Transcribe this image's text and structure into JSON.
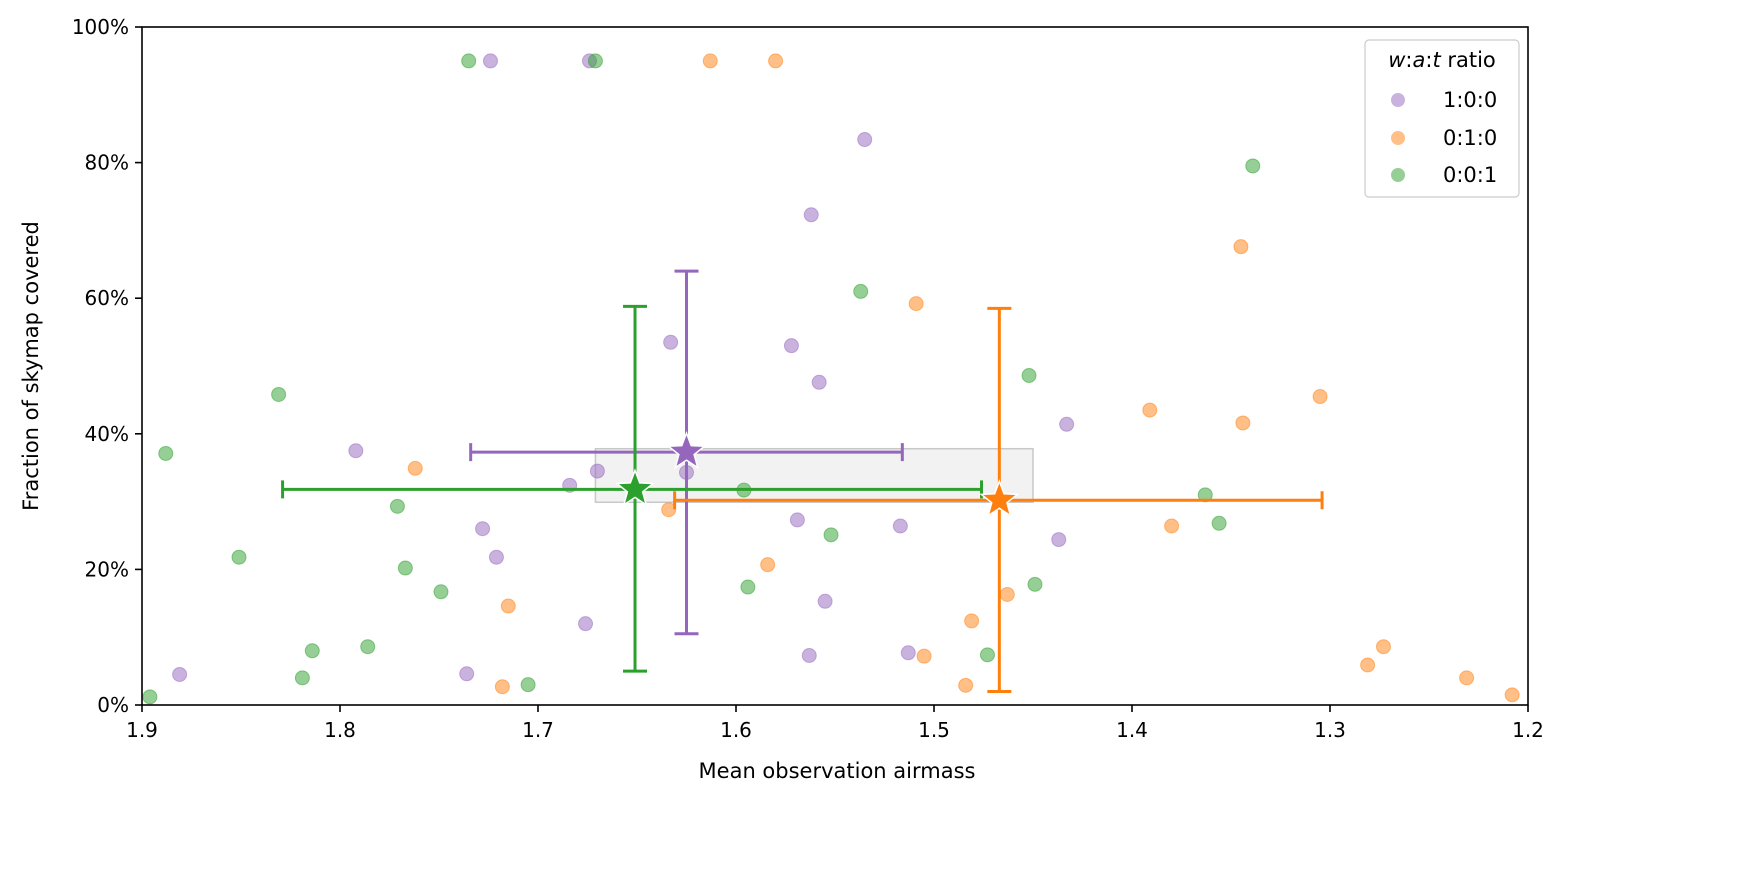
{
  "chart_data": {
    "type": "scatter",
    "xlabel": "Mean observation airmass",
    "ylabel": "Fraction of skymap covered",
    "xlim": [
      1.9,
      1.2
    ],
    "ylim": [
      0,
      100
    ],
    "x_inverted": true,
    "x_ticks": [
      1.9,
      1.8,
      1.7,
      1.6,
      1.5,
      1.4,
      1.3,
      1.2
    ],
    "x_tick_labels": [
      "1.9",
      "1.8",
      "1.7",
      "1.6",
      "1.5",
      "1.4",
      "1.3",
      "1.2"
    ],
    "y_ticks": [
      0,
      20,
      40,
      60,
      80,
      100
    ],
    "y_tick_labels": [
      "0%",
      "20%",
      "40%",
      "60%",
      "80%",
      "100%"
    ],
    "grid": false,
    "legend": {
      "title_var_w": "w",
      "title_sep": ":",
      "title_var_a": "a",
      "title_var_t": "t",
      "title_suffix": " ratio",
      "placement": "top-right"
    },
    "series": [
      {
        "name": "1:0:0",
        "color": "#9467bd",
        "points": [
          [
            1.881,
            4.5
          ],
          [
            1.792,
            37.5
          ],
          [
            1.736,
            4.6
          ],
          [
            1.728,
            26
          ],
          [
            1.724,
            95
          ],
          [
            1.721,
            21.8
          ],
          [
            1.684,
            32.4
          ],
          [
            1.676,
            12
          ],
          [
            1.674,
            95
          ],
          [
            1.67,
            34.5
          ],
          [
            1.633,
            53.5
          ],
          [
            1.625,
            34.3
          ],
          [
            1.572,
            53
          ],
          [
            1.569,
            27.3
          ],
          [
            1.563,
            7.3
          ],
          [
            1.562,
            72.3
          ],
          [
            1.558,
            47.6
          ],
          [
            1.555,
            15.3
          ],
          [
            1.535,
            83.4
          ],
          [
            1.517,
            26.4
          ],
          [
            1.513,
            7.7
          ],
          [
            1.437,
            24.4
          ],
          [
            1.433,
            41.4
          ]
        ],
        "mean": {
          "x": 1.625,
          "y": 37.3,
          "x_err": [
            1.734,
            1.516
          ],
          "y_err": [
            10.5,
            64
          ]
        }
      },
      {
        "name": "0:1:0",
        "color": "#ff7f0e",
        "points": [
          [
            1.762,
            34.9
          ],
          [
            1.715,
            14.6
          ],
          [
            1.718,
            2.7
          ],
          [
            1.634,
            28.8
          ],
          [
            1.613,
            95
          ],
          [
            1.584,
            20.7
          ],
          [
            1.58,
            95
          ],
          [
            1.509,
            59.2
          ],
          [
            1.505,
            7.2
          ],
          [
            1.484,
            2.9
          ],
          [
            1.481,
            12.4
          ],
          [
            1.463,
            16.3
          ],
          [
            1.391,
            43.5
          ],
          [
            1.38,
            26.4
          ],
          [
            1.345,
            67.6
          ],
          [
            1.344,
            41.6
          ],
          [
            1.305,
            45.5
          ],
          [
            1.281,
            5.9
          ],
          [
            1.273,
            8.6
          ],
          [
            1.231,
            4
          ],
          [
            1.208,
            1.5
          ]
        ],
        "mean": {
          "x": 1.467,
          "y": 30.2,
          "x_err": [
            1.631,
            1.304
          ],
          "y_err": [
            2,
            58.5
          ]
        }
      },
      {
        "name": "0:0:1",
        "color": "#2ca02c",
        "points": [
          [
            1.896,
            1.2
          ],
          [
            1.888,
            37.1
          ],
          [
            1.851,
            21.8
          ],
          [
            1.831,
            45.8
          ],
          [
            1.819,
            4
          ],
          [
            1.814,
            8
          ],
          [
            1.786,
            8.6
          ],
          [
            1.771,
            29.3
          ],
          [
            1.767,
            20.2
          ],
          [
            1.749,
            16.7
          ],
          [
            1.735,
            95
          ],
          [
            1.705,
            3
          ],
          [
            1.671,
            95
          ],
          [
            1.596,
            31.7
          ],
          [
            1.594,
            17.4
          ],
          [
            1.552,
            25.1
          ],
          [
            1.537,
            61
          ],
          [
            1.473,
            7.4
          ],
          [
            1.452,
            48.6
          ],
          [
            1.449,
            17.8
          ],
          [
            1.363,
            31
          ],
          [
            1.356,
            26.8
          ],
          [
            1.339,
            79.5
          ]
        ],
        "mean": {
          "x": 1.651,
          "y": 31.8,
          "x_err": [
            1.829,
            1.476
          ],
          "y_err": [
            5,
            58.8
          ]
        }
      }
    ],
    "highlight_box": {
      "x": [
        1.671,
        1.45
      ],
      "y": [
        29.9,
        37.8
      ],
      "fill": "#f2f2f2",
      "stroke": "#c8c8c8"
    }
  }
}
